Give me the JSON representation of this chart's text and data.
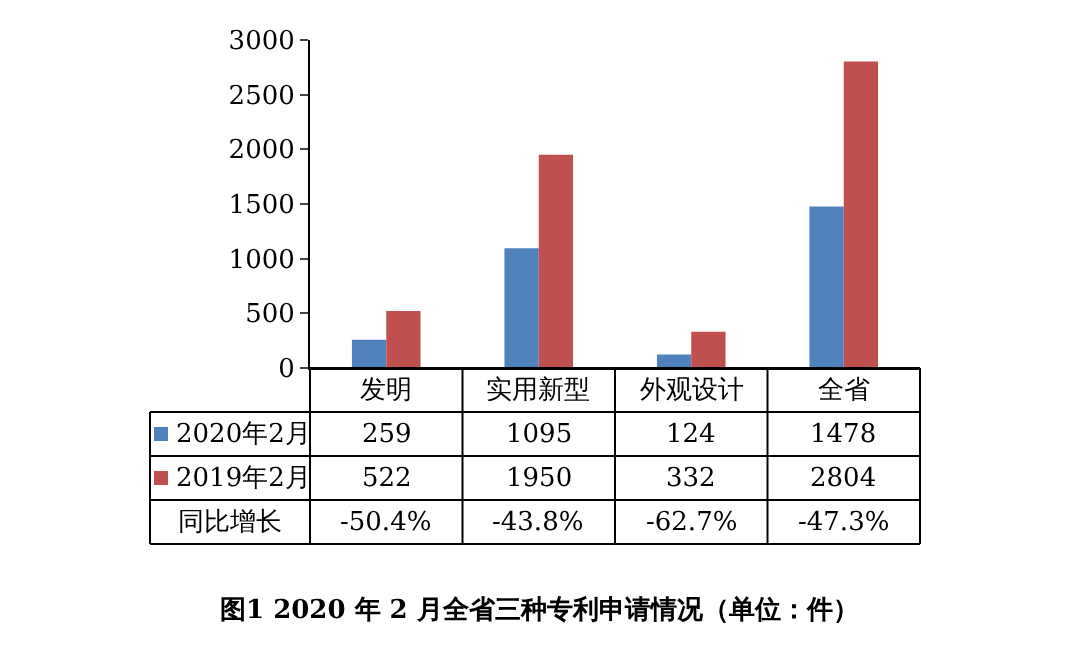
{
  "chart_data": {
    "type": "bar",
    "title": "图1 2020 年 2 月全省三种专利申请情况（单位：件）",
    "categories": [
      "发明",
      "实用新型",
      "外观设计",
      "全省"
    ],
    "series": [
      {
        "name": "2020年2月",
        "color": "#4f81bd",
        "values": [
          259,
          1095,
          124,
          1478
        ]
      },
      {
        "name": "2019年2月",
        "color": "#c0504d",
        "values": [
          522,
          1950,
          332,
          2804
        ]
      }
    ],
    "annotations": [
      "同比增长",
      "-50.4%",
      "-43.8%",
      "-62.7%",
      "-47.3%"
    ],
    "ylim": [
      0,
      3000
    ],
    "yticks": [
      0,
      500,
      1000,
      1500,
      2000,
      2500,
      3000
    ],
    "data_labels": true,
    "legend": "bottom left"
  }
}
